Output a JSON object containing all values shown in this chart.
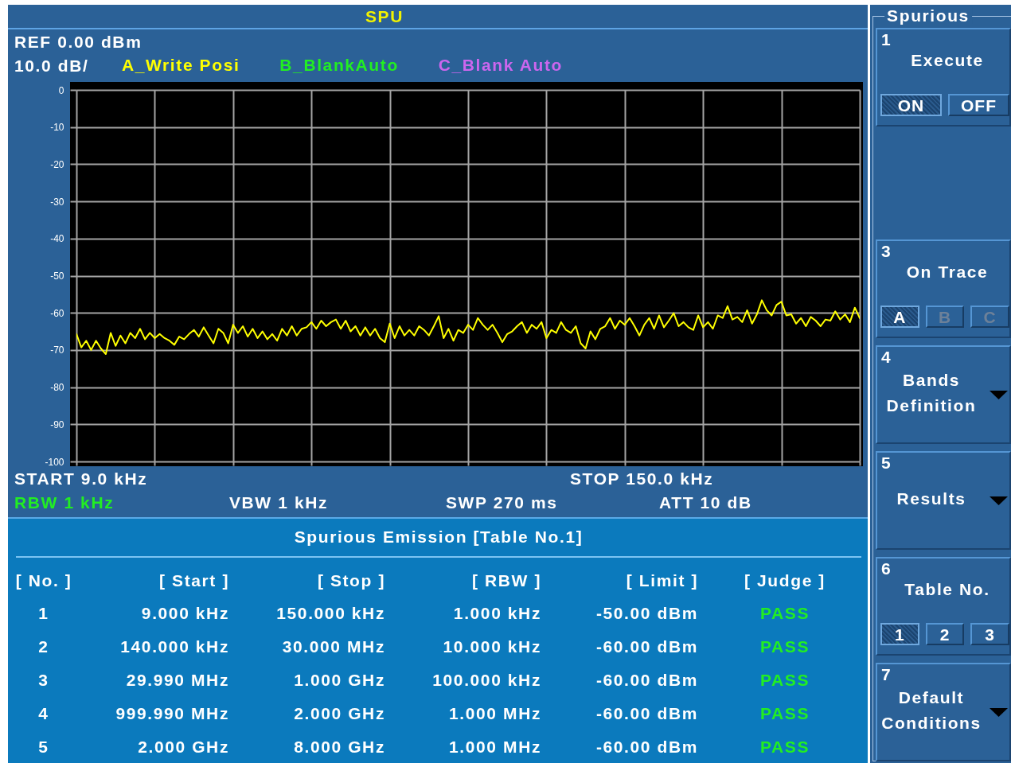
{
  "chart_data": [
    {
      "type": "line",
      "title": "SPU",
      "grid": true,
      "tick_labels": "y",
      "categories": [
        null,
        null,
        null,
        null,
        null,
        null,
        null,
        null,
        null,
        null,
        null,
        null,
        null,
        null,
        null,
        null,
        null,
        null,
        null,
        null,
        null,
        null,
        null,
        null,
        null,
        null,
        null,
        null,
        null,
        null,
        null,
        null,
        null,
        null,
        null,
        null,
        null,
        null,
        null,
        null,
        null,
        null,
        null,
        null,
        null,
        null,
        null,
        null,
        null,
        null,
        null,
        null,
        null,
        null,
        null,
        null,
        null,
        null,
        null,
        null,
        null,
        null,
        null,
        null,
        null,
        null,
        null,
        null,
        null,
        null,
        null,
        null,
        null,
        null,
        null,
        null,
        null,
        null,
        null,
        null,
        null,
        null,
        null,
        null,
        null,
        null,
        null,
        null,
        null,
        null,
        null,
        null,
        null,
        null,
        null,
        null,
        null,
        null,
        null,
        null,
        null,
        null,
        null,
        null,
        null,
        null,
        null,
        null,
        null,
        null,
        null,
        null,
        null,
        null,
        null,
        null,
        null,
        null,
        null,
        null,
        null,
        null,
        null,
        null,
        null,
        null,
        null,
        null,
        null,
        null,
        null,
        null,
        null,
        null,
        null,
        null,
        null,
        null,
        null,
        null,
        null,
        null,
        null,
        null,
        null,
        null,
        null,
        null,
        null,
        null,
        null,
        null,
        null,
        null,
        null,
        null,
        null,
        null,
        null,
        null,
        null
      ],
      "series": [
        {
          "name": "A_Write Posi",
          "color": "#ffff00",
          "values": [
            -65.7,
            -69.3,
            -67.5,
            -70.0,
            -67.5,
            -69.6,
            -71.1,
            -65.4,
            -68.9,
            -66.1,
            -68.2,
            -65.4,
            -66.8,
            -64.3,
            -67.1,
            -65.4,
            -66.8,
            -65.7,
            -66.8,
            -67.5,
            -68.6,
            -66.4,
            -67.1,
            -65.7,
            -64.6,
            -66.4,
            -63.9,
            -66.1,
            -68.2,
            -64.3,
            -65.4,
            -68.2,
            -63.2,
            -65.4,
            -63.6,
            -66.4,
            -64.3,
            -66.8,
            -65.0,
            -67.1,
            -65.7,
            -67.5,
            -64.3,
            -66.1,
            -63.6,
            -66.1,
            -64.3,
            -63.9,
            -62.5,
            -64.3,
            -62.1,
            -63.6,
            -62.5,
            -61.8,
            -64.3,
            -62.1,
            -65.0,
            -63.6,
            -66.1,
            -63.9,
            -66.1,
            -64.3,
            -66.8,
            -67.9,
            -62.9,
            -66.8,
            -63.6,
            -66.1,
            -64.6,
            -66.1,
            -63.6,
            -64.6,
            -66.1,
            -63.6,
            -60.9,
            -66.8,
            -64.3,
            -67.5,
            -64.6,
            -65.4,
            -63.2,
            -64.6,
            -61.4,
            -63.2,
            -64.6,
            -63.2,
            -65.4,
            -67.9,
            -65.7,
            -65.0,
            -63.6,
            -62.5,
            -65.4,
            -63.2,
            -64.3,
            -62.5,
            -66.8,
            -64.6,
            -65.4,
            -62.5,
            -64.6,
            -65.4,
            -63.6,
            -68.2,
            -69.6,
            -65.0,
            -67.1,
            -64.3,
            -63.6,
            -61.4,
            -64.3,
            -62.1,
            -63.2,
            -61.4,
            -63.6,
            -66.1,
            -63.2,
            -61.4,
            -64.3,
            -60.7,
            -63.9,
            -62.1,
            -60.1,
            -63.6,
            -62.5,
            -63.9,
            -64.6,
            -60.7,
            -63.9,
            -62.5,
            -64.3,
            -60.7,
            -61.4,
            -58.2,
            -61.8,
            -61.1,
            -62.5,
            -59.3,
            -62.9,
            -60.4,
            -56.6,
            -59.3,
            -60.7,
            -57.9,
            -57.0,
            -60.7,
            -60.4,
            -62.9,
            -61.4,
            -63.6,
            -61.1,
            -62.1,
            -63.6,
            -61.8,
            -62.1,
            -59.6,
            -61.8,
            -60.4,
            -62.5,
            -58.6,
            -61.4
          ]
        },
        {
          "name": "B_BlankAuto",
          "color": "#22ee22",
          "values": [
            null,
            null,
            null,
            null,
            null,
            null,
            null,
            null,
            null,
            null,
            null,
            null,
            null,
            null,
            null,
            null,
            null,
            null,
            null,
            null,
            null,
            null,
            null,
            null,
            null,
            null,
            null,
            null,
            null,
            null,
            null,
            null,
            null,
            null,
            null,
            null,
            null,
            null,
            null,
            null,
            null,
            null,
            null,
            null,
            null,
            null,
            null,
            null,
            null,
            null,
            null,
            null,
            null,
            null,
            null,
            null,
            null,
            null,
            null,
            null,
            null,
            null,
            null,
            null,
            null,
            null,
            null,
            null,
            null,
            null,
            null,
            null,
            null,
            null,
            null,
            null,
            null,
            null,
            null,
            null,
            null,
            null,
            null,
            null,
            null,
            null,
            null,
            null,
            null,
            null,
            null,
            null,
            null,
            null,
            null,
            null,
            null,
            null,
            null,
            null,
            null,
            null,
            null,
            null,
            null,
            null,
            null,
            null,
            null,
            null,
            null,
            null,
            null,
            null,
            null,
            null,
            null,
            null,
            null,
            null,
            null,
            null,
            null,
            null,
            null,
            null,
            null,
            null,
            null,
            null,
            null,
            null,
            null,
            null,
            null,
            null,
            null,
            null,
            null,
            null,
            null,
            null,
            null,
            null,
            null,
            null,
            null,
            null,
            null,
            null,
            null,
            null,
            null,
            null,
            null,
            null,
            null,
            null,
            null,
            null,
            null
          ]
        },
        {
          "name": "C_Blank Auto",
          "color": "#cc66ee",
          "values": [
            null,
            null,
            null,
            null,
            null,
            null,
            null,
            null,
            null,
            null,
            null,
            null,
            null,
            null,
            null,
            null,
            null,
            null,
            null,
            null,
            null,
            null,
            null,
            null,
            null,
            null,
            null,
            null,
            null,
            null,
            null,
            null,
            null,
            null,
            null,
            null,
            null,
            null,
            null,
            null,
            null,
            null,
            null,
            null,
            null,
            null,
            null,
            null,
            null,
            null,
            null,
            null,
            null,
            null,
            null,
            null,
            null,
            null,
            null,
            null,
            null,
            null,
            null,
            null,
            null,
            null,
            null,
            null,
            null,
            null,
            null,
            null,
            null,
            null,
            null,
            null,
            null,
            null,
            null,
            null,
            null,
            null,
            null,
            null,
            null,
            null,
            null,
            null,
            null,
            null,
            null,
            null,
            null,
            null,
            null,
            null,
            null,
            null,
            null,
            null,
            null,
            null,
            null,
            null,
            null,
            null,
            null,
            null,
            null,
            null,
            null,
            null,
            null,
            null,
            null,
            null,
            null,
            null,
            null,
            null,
            null,
            null,
            null,
            null,
            null,
            null,
            null,
            null,
            null,
            null,
            null,
            null,
            null,
            null,
            null,
            null,
            null,
            null,
            null,
            null,
            null,
            null,
            null,
            null,
            null,
            null,
            null,
            null,
            null,
            null,
            null,
            null,
            null,
            null,
            null,
            null,
            null,
            null,
            null,
            null,
            null
          ]
        }
      ],
      "ylim": [
        -100,
        0
      ],
      "yticks": [
        0,
        -10,
        -20,
        -30,
        -40,
        -50,
        -60,
        -70,
        -80,
        -90,
        -100
      ],
      "annotations": [
        "REF 0.00 dBm",
        "10.0 dB/",
        "START 9.0 kHz",
        "STOP 150.0 kHz",
        "RBW 1 kHz",
        "VBW 1 kHz",
        "SWP 270 ms",
        "ATT 10 dB"
      ]
    },
    {
      "type": "heatmap",
      "title": "Spurious Emission [Table No.1]",
      "ylabel": "[ No. ]",
      "categories": [
        "[ Start ]",
        "[ Stop ]",
        "[ RBW ]",
        "[ Limit ]",
        "[ Judge ]"
      ],
      "y_categories": [
        "1",
        "2",
        "3",
        "4",
        "5"
      ],
      "cells": [
        [
          null,
          null,
          null,
          null,
          null
        ],
        [
          null,
          null,
          null,
          null,
          null
        ],
        [
          null,
          null,
          null,
          null,
          null
        ],
        [
          null,
          null,
          null,
          null,
          null
        ],
        [
          null,
          null,
          null,
          null,
          null
        ]
      ],
      "cell_labels": [
        [
          "9.000 kHz",
          "150.000 kHz",
          "1.000 kHz",
          "-50.00 dBm",
          "PASS"
        ],
        [
          "140.000 kHz",
          "30.000 MHz",
          "10.000 kHz",
          "-60.00 dBm",
          "PASS"
        ],
        [
          "29.990 MHz",
          "1.000 GHz",
          "100.000 kHz",
          "-60.00 dBm",
          "PASS"
        ],
        [
          "999.990 MHz",
          "2.000 GHz",
          "1.000 MHz",
          "-60.00 dBm",
          "PASS"
        ],
        [
          "2.000 GHz",
          "8.000 GHz",
          "1.000 MHz",
          "-60.00 dBm",
          "PASS"
        ]
      ]
    },
    {
      "type": "other",
      "title": "Spurious",
      "categories": [
        "Execute",
        "On Trace",
        "Bands Definition",
        "Results",
        "Table No.",
        "Default Conditions"
      ],
      "annotations": [
        "1",
        "3",
        "4",
        "5",
        "6",
        "7",
        "ON",
        "OFF",
        "A",
        "B",
        "C",
        "1",
        "2",
        "3"
      ]
    }
  ]
}
